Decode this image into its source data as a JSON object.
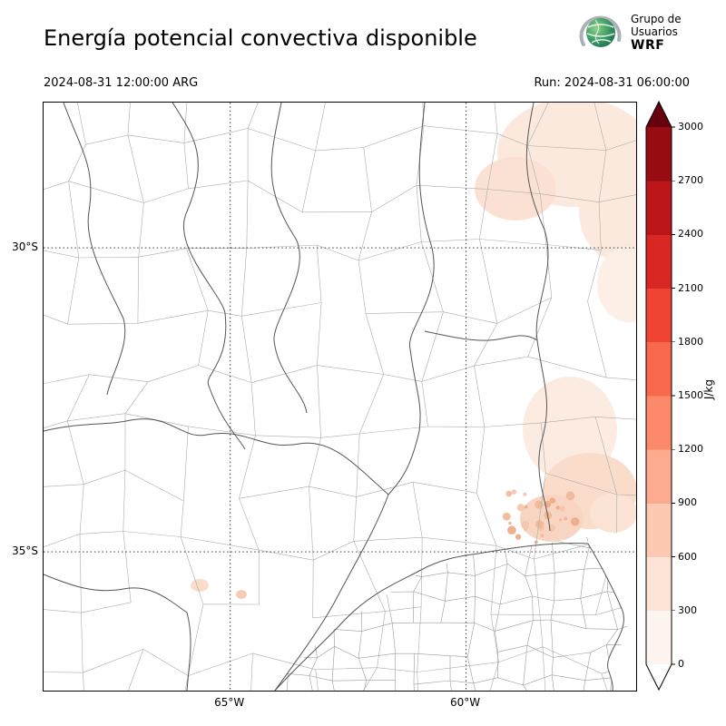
{
  "header": {
    "title": "Energía potencial convectiva disponible",
    "logo": {
      "line1": "Grupo de",
      "line2": "Usuarios",
      "line3": "WRF"
    }
  },
  "times": {
    "valid": "2024-08-31 12:00:00 ARG",
    "run": "Run: 2024-08-31 06:00:00"
  },
  "map": {
    "lat_ticks": [
      {
        "label": "30°S",
        "y_frac": 0.247
      },
      {
        "label": "35°S",
        "y_frac": 0.764
      }
    ],
    "lon_ticks": [
      {
        "label": "65°W",
        "x_frac": 0.315
      },
      {
        "label": "60°W",
        "x_frac": 0.713
      }
    ],
    "shading": {
      "visible_values": "mostly 0-600 J/kg (very pale red patches)",
      "regions": [
        "northeast corner",
        "east-central area near the coast",
        "speckled cluster east (near Buenos Aires)",
        "small pale patches south-center"
      ]
    }
  },
  "colorbar": {
    "unit": "J/kg",
    "ticks": [
      "0",
      "300",
      "600",
      "900",
      "1200",
      "1500",
      "1800",
      "2100",
      "2400",
      "2700",
      "3000"
    ],
    "segments_bottom_to_top": [
      "#fff5f0",
      "#fee3d7",
      "#fdc9b3",
      "#fcab8f",
      "#fc8a6a",
      "#f8694b",
      "#ef4433",
      "#da2723",
      "#bb151a",
      "#970b13"
    ],
    "under_color": "#ffffff",
    "over_color": "#67000d",
    "line_colors": {
      "province_boundary": "#555555",
      "department_boundary": "#ababab",
      "gridline": "#222222"
    }
  }
}
